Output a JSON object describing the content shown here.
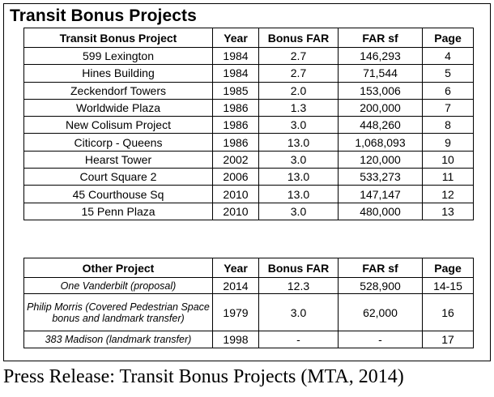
{
  "title": "Transit Bonus Projects",
  "table1": {
    "headers": [
      "Transit Bonus Project",
      "Year",
      "Bonus FAR",
      "FAR sf",
      "Page"
    ],
    "rows": [
      [
        "599 Lexington",
        "1984",
        "2.7",
        "146,293",
        "4"
      ],
      [
        "Hines Building",
        "1984",
        "2.7",
        "71,544",
        "5"
      ],
      [
        "Zeckendorf Towers",
        "1985",
        "2.0",
        "153,006",
        "6"
      ],
      [
        "Worldwide Plaza",
        "1986",
        "1.3",
        "200,000",
        "7"
      ],
      [
        "New Colisum Project",
        "1986",
        "3.0",
        "448,260",
        "8"
      ],
      [
        "Citicorp - Queens",
        "1986",
        "13.0",
        "1,068,093",
        "9"
      ],
      [
        "Hearst Tower",
        "2002",
        "3.0",
        "120,000",
        "10"
      ],
      [
        "Court Square 2",
        "2006",
        "13.0",
        "533,273",
        "11"
      ],
      [
        "45 Courthouse Sq",
        "2010",
        "13.0",
        "147,147",
        "12"
      ],
      [
        "15 Penn Plaza",
        "2010",
        "3.0",
        "480,000",
        "13"
      ]
    ]
  },
  "table2": {
    "headers": [
      "Other Project",
      "Year",
      "Bonus FAR",
      "FAR sf",
      "Page"
    ],
    "rows": [
      [
        "One Vanderbilt (proposal)",
        "2014",
        "12.3",
        "528,900",
        "14-15"
      ],
      [
        "Philip Morris (Covered Pedestrian Space bonus and landmark transfer)",
        "1979",
        "3.0",
        "62,000",
        "16"
      ],
      [
        "383 Madison (landmark transfer)",
        "1998",
        "-",
        "-",
        "17"
      ]
    ]
  },
  "caption": "Press Release: Transit Bonus Projects (MTA, 2014)"
}
